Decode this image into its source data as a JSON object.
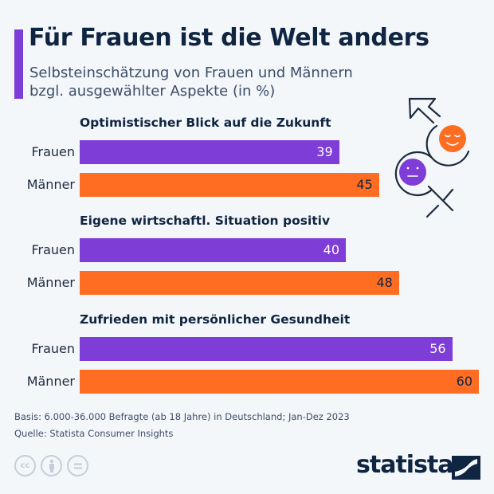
{
  "header": {
    "title": "Für Frauen ist die Welt anders",
    "subtitle_line1": "Selbsteinschätzung von Frauen und Männern",
    "subtitle_line2": "bzgl. ausgewählter Aspekte (in %)"
  },
  "colors": {
    "frauen": "#7e3dd6",
    "maenner": "#ff6d22",
    "title": "#0f2541"
  },
  "chart_data": {
    "type": "bar",
    "orientation": "horizontal",
    "title": "Für Frauen ist die Welt anders",
    "subtitle": "Selbsteinschätzung von Frauen und Männern bzgl. ausgewählter Aspekte (in %)",
    "xlabel": "",
    "ylabel": "",
    "xlim": [
      0,
      60
    ],
    "grid": false,
    "legend": "none",
    "groups": [
      {
        "title": "Optimistischer Blick auf die Zukunft",
        "bars": [
          {
            "label": "Frauen",
            "value": 39,
            "series": "frauen"
          },
          {
            "label": "Männer",
            "value": 45,
            "series": "maenner"
          }
        ]
      },
      {
        "title": "Eigene wirtschaftl. Situation positiv",
        "bars": [
          {
            "label": "Frauen",
            "value": 40,
            "series": "frauen"
          },
          {
            "label": "Männer",
            "value": 48,
            "series": "maenner"
          }
        ]
      },
      {
        "title": "Zufrieden mit persönlicher Gesundheit",
        "bars": [
          {
            "label": "Frauen",
            "value": 56,
            "series": "frauen"
          },
          {
            "label": "Männer",
            "value": 60,
            "series": "maenner"
          }
        ]
      }
    ]
  },
  "footer": {
    "basis": "Basis: 6.000-36.000 Befragte (ab 18 Jahre) in Deutschland; Jan-Dez 2023",
    "source": "Quelle: Statista Consumer Insights",
    "license_icons": [
      "cc-icon",
      "attribution-icon",
      "no-derivatives-icon"
    ],
    "cc_text": "cc",
    "logo_text": "statista"
  }
}
